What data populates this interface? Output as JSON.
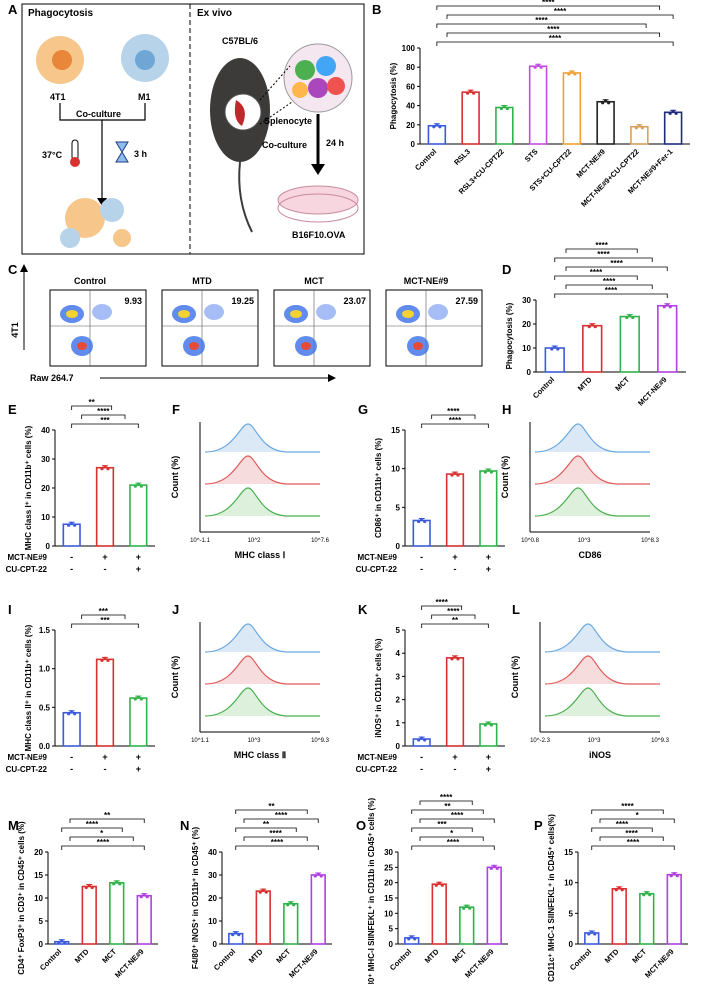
{
  "panel_labels": {
    "A": "A",
    "B": "B",
    "C": "C",
    "D": "D",
    "E": "E",
    "F": "F",
    "G": "G",
    "H": "H",
    "I": "I",
    "J": "J",
    "K": "K",
    "L": "L",
    "M": "M",
    "N": "N",
    "O": "O",
    "P": "P"
  },
  "schematic": {
    "left_title": "Phagocytosis",
    "cell1": "4T1",
    "cell2": "M1",
    "coculture": "Co-culture",
    "temp": "37°C",
    "time": "3 h",
    "right_title": "Ex vivo",
    "mouse": "C57BL/6",
    "splenocyte": "Splenocyte",
    "coculture2": "Co-culture",
    "time2": "24 h",
    "target": "B16F10.OVA"
  },
  "flow": {
    "titles": [
      "Control",
      "MTD",
      "MCT",
      "MCT-NE#9"
    ],
    "values": [
      "9.93",
      "19.25",
      "23.07",
      "27.59"
    ],
    "ylabel": "4T1",
    "xlabel": "Raw 264.7"
  },
  "hist": {
    "F": {
      "xlabel": "MHC class Ⅰ",
      "ticks": [
        "10^-1.1",
        "10^2",
        "10^7.6"
      ]
    },
    "H": {
      "xlabel": "CD86",
      "ticks": [
        "10^0.8",
        "10^3",
        "10^8.3"
      ]
    },
    "J": {
      "xlabel": "MHC class Ⅱ",
      "ticks": [
        "10^1.1",
        "10^3",
        "10^9.3"
      ]
    },
    "L": {
      "xlabel": "iNOS",
      "ticks": [
        "10^-2.3",
        "10^3",
        "10^9.3"
      ]
    },
    "ylabel": "Count (%)"
  },
  "treat_rows": {
    "row1": "MCT-NE#9",
    "row2": "CU-CPT-22"
  },
  "chart_data": [
    {
      "panel": "B",
      "type": "bar",
      "ylabel": "Phagocytosis (%)",
      "ylim": [
        0,
        100
      ],
      "yticks": [
        0,
        20,
        40,
        60,
        80,
        100
      ],
      "categories": [
        "Control",
        "RSL3",
        "RSL3+CU-CPT22",
        "STS",
        "STS+CU-CPT22",
        "MCT-NE#9",
        "MCT-NE#9+CU-CPT22",
        "MCT-NE#9+Fer-1"
      ],
      "values": [
        19,
        54,
        38,
        81,
        74,
        44,
        18,
        33
      ],
      "colors": [
        "#3b5bdb",
        "#d93030",
        "#2fb34a",
        "#c44de0",
        "#f0a030",
        "#222222",
        "#d9a05b",
        "#1f2a80"
      ],
      "sig": [
        "****",
        "****",
        "****",
        "****",
        "****"
      ]
    },
    {
      "panel": "D",
      "type": "bar",
      "ylabel": "Phagocytosis (%)",
      "ylim": [
        0,
        30
      ],
      "yticks": [
        0,
        10,
        20,
        30
      ],
      "categories": [
        "Control",
        "MTD",
        "MCT",
        "MCT-NE#9"
      ],
      "values": [
        10,
        19.3,
        23.1,
        27.6
      ],
      "colors": [
        "#3b5bdb",
        "#d93030",
        "#2fb34a",
        "#b040e0"
      ],
      "sig": [
        "****",
        "****",
        "****",
        "****",
        "****",
        "****"
      ]
    },
    {
      "panel": "E",
      "type": "bar",
      "ylabel": "MHC class I⁺ in CD11b⁺ cells (%)",
      "ylim": [
        0,
        40
      ],
      "yticks": [
        0,
        10,
        20,
        30,
        40
      ],
      "categories": [
        "",
        "",
        ""
      ],
      "treat1": [
        "-",
        "+",
        "+"
      ],
      "treat2": [
        "-",
        "-",
        "+"
      ],
      "values": [
        7.5,
        27,
        21
      ],
      "colors": [
        "#3b5bdb",
        "#d93030",
        "#2fb34a"
      ],
      "sig": [
        "***",
        "****",
        "**"
      ]
    },
    {
      "panel": "G",
      "type": "bar",
      "ylabel": "CD86⁺ in CD11b⁺ cells (%)",
      "ylim": [
        0,
        15
      ],
      "yticks": [
        0,
        5,
        10,
        15
      ],
      "categories": [
        "",
        "",
        ""
      ],
      "treat1": [
        "-",
        "+",
        "+"
      ],
      "treat2": [
        "-",
        "-",
        "+"
      ],
      "values": [
        3.3,
        9.3,
        9.7
      ],
      "colors": [
        "#3b5bdb",
        "#d93030",
        "#2fb34a"
      ],
      "sig": [
        "****",
        "****"
      ]
    },
    {
      "panel": "I",
      "type": "bar",
      "ylabel": "MHC class II⁺ in CD11b⁺ cells (%)",
      "ylim": [
        0,
        1.5
      ],
      "yticks": [
        "0.0",
        "0.5",
        "1.0",
        "1.5"
      ],
      "categories": [
        "",
        "",
        ""
      ],
      "treat1": [
        "-",
        "+",
        "+"
      ],
      "treat2": [
        "-",
        "-",
        "+"
      ],
      "values": [
        0.43,
        1.12,
        0.62
      ],
      "colors": [
        "#3b5bdb",
        "#d93030",
        "#2fb34a"
      ],
      "sig": [
        "***",
        "***"
      ]
    },
    {
      "panel": "K",
      "type": "bar",
      "ylabel": "iNOS⁺ in CD11b⁺ cells (%)",
      "ylim": [
        0,
        5
      ],
      "yticks": [
        0,
        1,
        2,
        3,
        4,
        5
      ],
      "categories": [
        "",
        "",
        ""
      ],
      "treat1": [
        "-",
        "+",
        "+"
      ],
      "treat2": [
        "-",
        "-",
        "+"
      ],
      "values": [
        0.3,
        3.8,
        0.95
      ],
      "colors": [
        "#3b5bdb",
        "#d93030",
        "#2fb34a"
      ],
      "sig": [
        "**",
        "****",
        "****"
      ]
    },
    {
      "panel": "M",
      "type": "bar",
      "ylabel": "CD4⁺ FoxP3⁺ in CD3⁺ in CD45⁺ cells (%)",
      "ylim": [
        0,
        20
      ],
      "yticks": [
        0,
        5,
        10,
        15,
        20
      ],
      "categories": [
        "Control",
        "MTD",
        "MCT",
        "MCT-NE#9"
      ],
      "values": [
        0.5,
        12.5,
        13.3,
        10.5
      ],
      "colors": [
        "#3b5bdb",
        "#d93030",
        "#2fb34a",
        "#b040e0"
      ],
      "sig": [
        "****",
        "*",
        "****",
        "**"
      ]
    },
    {
      "panel": "N",
      "type": "bar",
      "ylabel": "F4/80⁺ iNOS⁺ in CD11b⁺ in CD45⁺ (%)",
      "ylim": [
        0,
        40
      ],
      "yticks": [
        0,
        10,
        20,
        30,
        40
      ],
      "categories": [
        "Control",
        "MTD",
        "MCT",
        "MCT-NE#9"
      ],
      "values": [
        4.5,
        23,
        17.5,
        30
      ],
      "colors": [
        "#3b5bdb",
        "#d93030",
        "#2fb34a",
        "#b040e0"
      ],
      "sig": [
        "****",
        "****",
        "**",
        "****",
        "**"
      ]
    },
    {
      "panel": "O",
      "type": "bar",
      "ylabel": "F4/80⁺ MHC-I SIINFEKL⁺ in CD11b in CD45⁺ cells (%)",
      "ylim": [
        0,
        30
      ],
      "yticks": [
        0,
        5,
        10,
        15,
        20,
        25,
        30
      ],
      "categories": [
        "Control",
        "MTD",
        "MCT",
        "MCT-NE#9"
      ],
      "values": [
        2,
        19.5,
        12,
        25
      ],
      "colors": [
        "#3b5bdb",
        "#d93030",
        "#2fb34a",
        "#b040e0"
      ],
      "sig": [
        "****",
        "*",
        "***",
        "****",
        "**",
        "****"
      ]
    },
    {
      "panel": "P",
      "type": "bar",
      "ylabel": "CD11c⁺ MHC-1 SIINFEKL⁺ in CD45⁺ cells(%)",
      "ylim": [
        0,
        15
      ],
      "yticks": [
        0,
        5,
        10,
        15
      ],
      "categories": [
        "Control",
        "MTD",
        "MCT",
        "MCT-NE#9"
      ],
      "values": [
        1.8,
        9,
        8.2,
        11.3
      ],
      "colors": [
        "#3b5bdb",
        "#d93030",
        "#2fb34a",
        "#b040e0"
      ],
      "sig": [
        "****",
        "****",
        "****",
        "*",
        "****"
      ]
    }
  ]
}
